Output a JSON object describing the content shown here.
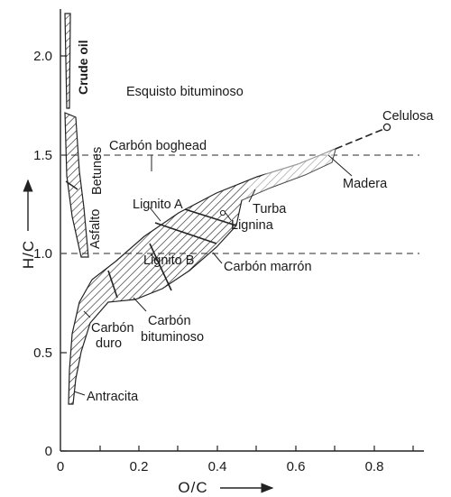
{
  "chart_data": {
    "type": "diagram",
    "title": "",
    "xlabel": "O/C",
    "ylabel": "H/C",
    "xlim": [
      0,
      0.9
    ],
    "ylim": [
      0,
      2.2
    ],
    "x_ticks": [
      "0",
      "0.2",
      "0.4",
      "0.6",
      "0.8"
    ],
    "y_ticks": [
      "0",
      "0.5",
      "1.0",
      "1.5",
      "2.0"
    ],
    "reference_lines": [
      {
        "y": 1.5,
        "label": "Carbón boghead"
      },
      {
        "y": 1.0,
        "label": ""
      }
    ],
    "regions": [
      "Crude oil",
      "Betunes",
      "Asfalto",
      "Lignito A",
      "Lignito B",
      "Carbón marrón",
      "Carbón duro",
      "Carbón bituminoso",
      "Antracita",
      "Turba",
      "Lignina",
      "Madera",
      "Celulosa"
    ],
    "annotations": [
      "Esquisto bituminoso"
    ]
  },
  "labels": {
    "crude_oil": "Crude oil",
    "esquisto": "Esquisto bituminoso",
    "celulosa": "Celulosa",
    "boghead": "Carbón boghead",
    "betunes": "Betunes",
    "madera": "Madera",
    "turba": "Turba",
    "lignito_a": "Lignito A",
    "lignina": "Lignina",
    "asfalto": "Asfalto",
    "lignito_b": "Lignito B",
    "carbon_marron": "Carbón marrón",
    "carbon": "Carbón",
    "duro": "duro",
    "carbon2": "Carbón",
    "bituminoso": "bituminoso",
    "antracita": "Antracita"
  },
  "axes": {
    "x_title": "O/C",
    "y_title": "H/C"
  }
}
